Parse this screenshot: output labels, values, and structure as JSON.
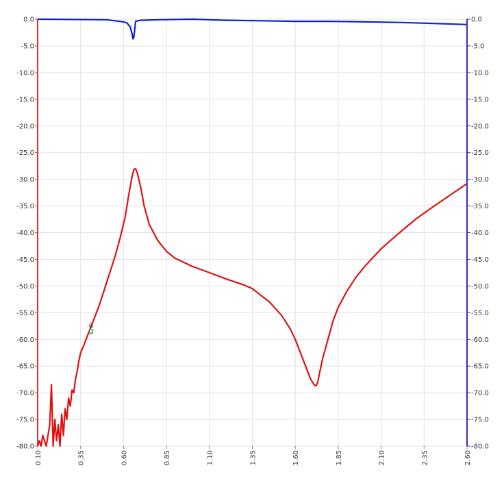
{
  "chart_data": {
    "type": "line",
    "title": "",
    "xlabel": "",
    "ylabel": "",
    "xlim": [
      0.1,
      2.6
    ],
    "ylim_left": [
      -80,
      0
    ],
    "ylim_right": [
      -80,
      0
    ],
    "x_ticks": [
      "0.10",
      "0.35",
      "0.60",
      "0.85",
      "1.10",
      "1.35",
      "1.60",
      "1.85",
      "2.10",
      "2.35",
      "2.60"
    ],
    "y_ticks_left": [
      "0.0",
      "-5.0",
      "-10.0",
      "-15.0",
      "-20.0",
      "-25.0",
      "-30.0",
      "-35.0",
      "-40.0",
      "-45.0",
      "-50.0",
      "-55.0",
      "-60.0",
      "-65.0",
      "-70.0",
      "-75.0",
      "-80.0"
    ],
    "y_ticks_right": [
      "0.0",
      "-5.0",
      "-10.0",
      "-15.0",
      "-20.0",
      "-25.0",
      "-30.0",
      "-35.0",
      "-40.0",
      "-45.0",
      "-50.0",
      "-55.0",
      "-60.0",
      "-65.0",
      "-70.0",
      "-75.0",
      "-80.0"
    ],
    "grid": true,
    "left_axis_color": "#e03030",
    "right_axis_color": "#3030c0",
    "series": [
      {
        "axis": "left",
        "color": "#e01010",
        "points": [
          [
            0.1,
            -80
          ],
          [
            0.11,
            -79
          ],
          [
            0.12,
            -80
          ],
          [
            0.13,
            -78
          ],
          [
            0.15,
            -80
          ],
          [
            0.17,
            -76
          ],
          [
            0.18,
            -68.5
          ],
          [
            0.19,
            -80
          ],
          [
            0.2,
            -75
          ],
          [
            0.21,
            -79
          ],
          [
            0.22,
            -76
          ],
          [
            0.23,
            -80
          ],
          [
            0.24,
            -74
          ],
          [
            0.25,
            -78
          ],
          [
            0.26,
            -73
          ],
          [
            0.27,
            -75
          ],
          [
            0.28,
            -71
          ],
          [
            0.29,
            -72.5
          ],
          [
            0.3,
            -69.5
          ],
          [
            0.31,
            -70
          ],
          [
            0.32,
            -67.5
          ],
          [
            0.33,
            -66
          ],
          [
            0.34,
            -64
          ],
          [
            0.35,
            -62.5
          ],
          [
            0.37,
            -61
          ],
          [
            0.4,
            -58.5
          ],
          [
            0.43,
            -56
          ],
          [
            0.46,
            -53.5
          ],
          [
            0.5,
            -49.5
          ],
          [
            0.55,
            -44.5
          ],
          [
            0.58,
            -41
          ],
          [
            0.61,
            -37
          ],
          [
            0.63,
            -33
          ],
          [
            0.65,
            -29.5
          ],
          [
            0.66,
            -28.2
          ],
          [
            0.67,
            -28
          ],
          [
            0.68,
            -28.8
          ],
          [
            0.7,
            -31.5
          ],
          [
            0.72,
            -35
          ],
          [
            0.75,
            -38.5
          ],
          [
            0.8,
            -41.5
          ],
          [
            0.85,
            -43.5
          ],
          [
            0.9,
            -44.8
          ],
          [
            1.0,
            -46.3
          ],
          [
            1.1,
            -47.5
          ],
          [
            1.2,
            -48.7
          ],
          [
            1.3,
            -49.8
          ],
          [
            1.35,
            -50.5
          ],
          [
            1.45,
            -53
          ],
          [
            1.52,
            -55.5
          ],
          [
            1.57,
            -58
          ],
          [
            1.6,
            -60
          ],
          [
            1.63,
            -62.5
          ],
          [
            1.66,
            -65
          ],
          [
            1.69,
            -67.5
          ],
          [
            1.71,
            -68.5
          ],
          [
            1.72,
            -68.7
          ],
          [
            1.73,
            -68.2
          ],
          [
            1.74,
            -66.5
          ],
          [
            1.76,
            -63.5
          ],
          [
            1.79,
            -60
          ],
          [
            1.82,
            -56.5
          ],
          [
            1.85,
            -54
          ],
          [
            1.9,
            -51
          ],
          [
            1.95,
            -48.5
          ],
          [
            2.0,
            -46.5
          ],
          [
            2.1,
            -43
          ],
          [
            2.2,
            -40.2
          ],
          [
            2.3,
            -37.5
          ],
          [
            2.4,
            -35.2
          ],
          [
            2.5,
            -33
          ],
          [
            2.6,
            -30.8
          ]
        ]
      },
      {
        "axis": "right",
        "color": "#1020d0",
        "points": [
          [
            0.1,
            0
          ],
          [
            0.5,
            -0.1
          ],
          [
            0.55,
            -0.3
          ],
          [
            0.6,
            -0.5
          ],
          [
            0.62,
            -0.7
          ],
          [
            0.64,
            -1.5
          ],
          [
            0.65,
            -2.8
          ],
          [
            0.655,
            -3.7
          ],
          [
            0.66,
            -3.4
          ],
          [
            0.665,
            -2.0
          ],
          [
            0.67,
            -0.4
          ],
          [
            0.7,
            -0.2
          ],
          [
            0.8,
            -0.1
          ],
          [
            1.0,
            0
          ],
          [
            1.1,
            -0.1
          ],
          [
            1.2,
            -0.2
          ],
          [
            1.4,
            -0.3
          ],
          [
            1.6,
            -0.4
          ],
          [
            1.8,
            -0.4
          ],
          [
            2.0,
            -0.5
          ],
          [
            2.2,
            -0.6
          ],
          [
            2.4,
            -0.8
          ],
          [
            2.6,
            -1.0
          ]
        ]
      }
    ],
    "markers": [
      {
        "label": "0",
        "x": 0.41,
        "y": -58.5,
        "color": "#30a030"
      }
    ]
  }
}
